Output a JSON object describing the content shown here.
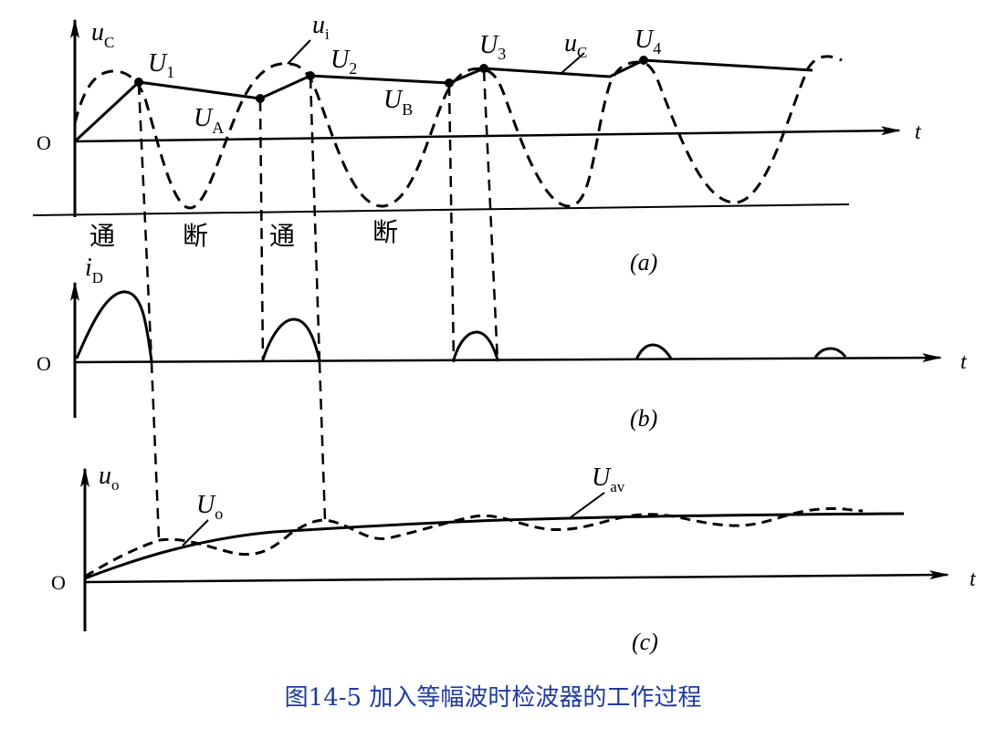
{
  "panel_a": {
    "axis_y_main": "u",
    "axis_y_sub": "C",
    "origin": "O",
    "axis_t": "t",
    "label_ui_main": "u",
    "label_ui_sub": "i",
    "label_uc2_main": "u",
    "label_uc2_sub": "C",
    "U1_main": "U",
    "U1_sub": "1",
    "U2_main": "U",
    "U2_sub": "2",
    "U3_main": "U",
    "U3_sub": "3",
    "U4_main": "U",
    "U4_sub": "4",
    "UA_main": "U",
    "UA_sub": "A",
    "UB_main": "U",
    "UB_sub": "B",
    "state_on_1": "通",
    "state_off_1": "断",
    "state_on_2": "通",
    "state_off_2": "断",
    "tag": "(a)"
  },
  "panel_b": {
    "axis_y_main": "i",
    "axis_y_sub": "D",
    "origin": "O",
    "axis_t": "t",
    "tag": "(b)"
  },
  "panel_c": {
    "axis_y_main": "u",
    "axis_y_sub": "o",
    "origin": "O",
    "axis_t": "t",
    "Uo_main": "U",
    "Uo_sub": "o",
    "Uav_main": "U",
    "Uav_sub": "av",
    "tag": "(c)"
  },
  "caption": "图14-5  加入等幅波时检波器的工作过程",
  "colors": {
    "ink": "#000000",
    "caption": "#1f3aa0"
  }
}
